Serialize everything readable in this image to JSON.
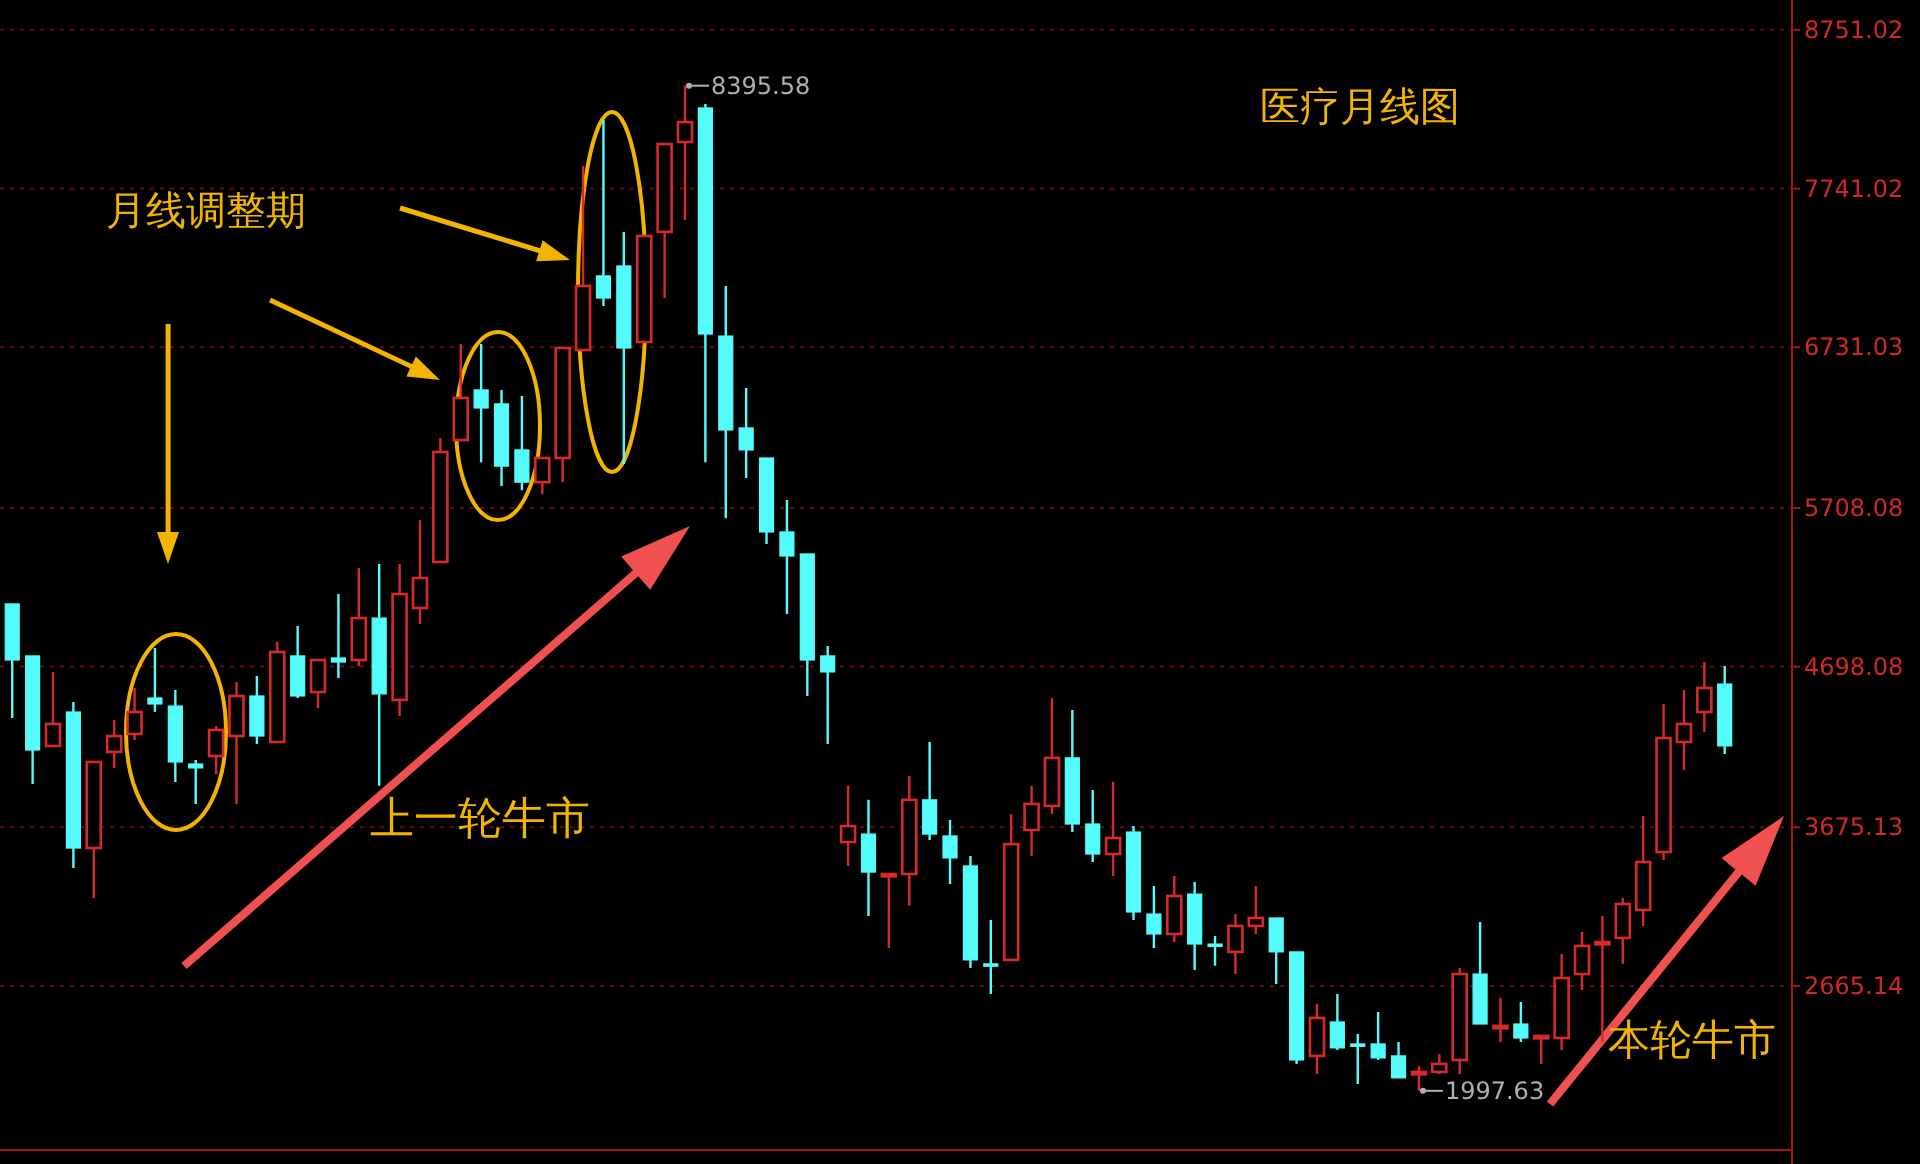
{
  "chart_data": {
    "type": "candlestick",
    "title": "医疗月线图",
    "categories": [
      null,
      null,
      null,
      null,
      null,
      null,
      null,
      null,
      null,
      null,
      null,
      null,
      null,
      null,
      null,
      null,
      null,
      null,
      null,
      null,
      null,
      null,
      null,
      null,
      null,
      null,
      null,
      null,
      null,
      null,
      null,
      null,
      null,
      null,
      null,
      null,
      null,
      null,
      null,
      null,
      null,
      null,
      null,
      null,
      null,
      null,
      null,
      null,
      null,
      null,
      null,
      null,
      null,
      null,
      null,
      null,
      null,
      null,
      null,
      null,
      null,
      null,
      null,
      null,
      null,
      null,
      null,
      null,
      null,
      null,
      null,
      null,
      null,
      null,
      null,
      null,
      null,
      null,
      null,
      null,
      null,
      null,
      null,
      null,
      null
    ],
    "ohlc": [
      [
        5097,
        5097,
        4371,
        4740
      ],
      [
        4766,
        4766,
        3951,
        4167
      ],
      [
        4193,
        4664,
        4193,
        4333
      ],
      [
        4409,
        4473,
        3416,
        3543
      ],
      [
        3543,
        4091,
        3225,
        4091
      ],
      [
        4155,
        4358,
        4053,
        4256
      ],
      [
        4269,
        4562,
        4231,
        4409
      ],
      [
        4498,
        4816,
        4409,
        4460
      ],
      [
        4447,
        4549,
        3964,
        4091
      ],
      [
        4078,
        4104,
        3824,
        4053
      ],
      [
        4129,
        4320,
        4015,
        4295
      ],
      [
        4256,
        4600,
        3824,
        4511
      ],
      [
        4511,
        4638,
        4205,
        4256
      ],
      [
        4218,
        4855,
        4218,
        4791
      ],
      [
        4766,
        4957,
        4498,
        4511
      ],
      [
        4536,
        4740,
        4435,
        4740
      ],
      [
        4753,
        5160,
        4626,
        4727
      ],
      [
        4740,
        5326,
        4702,
        5007
      ],
      [
        5007,
        5351,
        3939,
        4524
      ],
      [
        4486,
        5351,
        4384,
        5160
      ],
      [
        5071,
        5631,
        4969,
        5262
      ],
      [
        5364,
        6153,
        5364,
        6064
      ],
      [
        6140,
        6751,
        6140,
        6408
      ],
      [
        6459,
        6751,
        5999,
        6344
      ],
      [
        6370,
        6459,
        5847,
        5974
      ],
      [
        6077,
        6421,
        5821,
        5872
      ],
      [
        5872,
        6026,
        5796,
        6026
      ],
      [
        6026,
        6726,
        5872,
        6726
      ],
      [
        6713,
        7884,
        6713,
        7121
      ],
      [
        7185,
        8177,
        6993,
        7044
      ],
      [
        7248,
        7465,
        5987,
        6726
      ],
      [
        6764,
        7439,
        6764,
        7439
      ],
      [
        7465,
        8024,
        7044,
        8024
      ],
      [
        8037,
        8395.58,
        7541,
        8164
      ],
      [
        8254,
        8279,
        5999,
        6815
      ],
      [
        6802,
        7121,
        5643,
        6204
      ],
      [
        6217,
        6472,
        5898,
        6077
      ],
      [
        6026,
        6026,
        5478,
        5555
      ],
      [
        5555,
        5758,
        5033,
        5402
      ],
      [
        5415,
        5415,
        4511,
        4740
      ],
      [
        4766,
        4829,
        4205,
        4664
      ],
      [
        3581,
        3939,
        3429,
        3683
      ],
      [
        3632,
        3850,
        3110,
        3390
      ],
      [
        3365,
        3378,
        2907,
        3378
      ],
      [
        3378,
        4002,
        3175,
        3850
      ],
      [
        3850,
        4218,
        3594,
        3632
      ],
      [
        3620,
        3722,
        3314,
        3480
      ],
      [
        3429,
        3492,
        2780,
        2831
      ],
      [
        2806,
        3085,
        2614,
        2793
      ],
      [
        2831,
        3759,
        2831,
        3568
      ],
      [
        3658,
        3939,
        3492,
        3824
      ],
      [
        3811,
        4498,
        3759,
        4117
      ],
      [
        4117,
        4422,
        3645,
        3696
      ],
      [
        3696,
        3913,
        3454,
        3505
      ],
      [
        3505,
        3964,
        3365,
        3607
      ],
      [
        3645,
        3683,
        3085,
        3136
      ],
      [
        3123,
        3301,
        2907,
        2996
      ],
      [
        2996,
        3365,
        2945,
        3238
      ],
      [
        3250,
        3327,
        2767,
        2932
      ],
      [
        2932,
        2983,
        2793,
        2920
      ],
      [
        2882,
        3123,
        2742,
        3047
      ],
      [
        3047,
        3301,
        2996,
        3098
      ],
      [
        3098,
        3098,
        2678,
        2882
      ],
      [
        2882,
        2882,
        2169,
        2194
      ],
      [
        2220,
        2551,
        2105,
        2462
      ],
      [
        2436,
        2614,
        2258,
        2271
      ],
      [
        2296,
        2360,
        2041,
        2284
      ],
      [
        2296,
        2500,
        2194,
        2207
      ],
      [
        2220,
        2309,
        2080,
        2080
      ],
      [
        2105,
        2156,
        1997.63,
        2118
      ],
      [
        2118,
        2232,
        2105,
        2169
      ],
      [
        2194,
        2780,
        2105,
        2741
      ],
      [
        2741,
        3072,
        2423,
        2423
      ],
      [
        2398,
        2589,
        2309,
        2411
      ],
      [
        2423,
        2563,
        2309,
        2334
      ],
      [
        2334,
        2347,
        2169,
        2347
      ],
      [
        2334,
        2869,
        2258,
        2716
      ],
      [
        2741,
        3009,
        2640,
        2920
      ],
      [
        2932,
        3110,
        2309,
        2945
      ],
      [
        2971,
        3225,
        2806,
        3187
      ],
      [
        3149,
        3747,
        3047,
        3454
      ],
      [
        3518,
        4460,
        3467,
        4243
      ],
      [
        4218,
        4549,
        4040,
        4333
      ],
      [
        4409,
        4727,
        4282,
        4562
      ],
      [
        4587,
        4702,
        4142,
        4193
      ]
    ],
    "colors": [
      "#54fcfc",
      "#54fcfc",
      "#d62a2a",
      "#54fcfc",
      "#d62a2a",
      "#d62a2a",
      "#d62a2a",
      "#54fcfc",
      "#54fcfc",
      "#54fcfc",
      "#d62a2a",
      "#d62a2a",
      "#54fcfc",
      "#d62a2a",
      "#54fcfc",
      "#d62a2a",
      "#54fcfc",
      "#d62a2a",
      "#54fcfc",
      "#d62a2a",
      "#d62a2a",
      "#d62a2a",
      "#d62a2a",
      "#54fcfc",
      "#54fcfc",
      "#54fcfc",
      "#d62a2a",
      "#d62a2a",
      "#d62a2a",
      "#54fcfc",
      "#54fcfc",
      "#d62a2a",
      "#d62a2a",
      "#d62a2a",
      "#54fcfc",
      "#54fcfc",
      "#54fcfc",
      "#54fcfc",
      "#54fcfc",
      "#54fcfc",
      "#54fcfc",
      "#d62a2a",
      "#54fcfc",
      "#d62a2a",
      "#d62a2a",
      "#54fcfc",
      "#54fcfc",
      "#54fcfc",
      "#54fcfc",
      "#d62a2a",
      "#d62a2a",
      "#d62a2a",
      "#54fcfc",
      "#54fcfc",
      "#d62a2a",
      "#54fcfc",
      "#54fcfc",
      "#d62a2a",
      "#54fcfc",
      "#54fcfc",
      "#d62a2a",
      "#d62a2a",
      "#54fcfc",
      "#54fcfc",
      "#d62a2a",
      "#54fcfc",
      "#54fcfc",
      "#54fcfc",
      "#54fcfc",
      "#d62a2a",
      "#d62a2a",
      "#d62a2a",
      "#54fcfc",
      "#d62a2a",
      "#54fcfc",
      "#d62a2a",
      "#d62a2a",
      "#d62a2a",
      "#d62a2a",
      "#d62a2a",
      "#d62a2a",
      "#d62a2a",
      "#d62a2a",
      "#d62a2a",
      "#54fcfc"
    ],
    "ylim": [
      1621,
      8941
    ],
    "yticks": [
      2665.14,
      3675.13,
      4698.08,
      5708.08,
      6731.03,
      7741.02,
      8751.02
    ],
    "grid": "y",
    "tick_labels": "y",
    "annotations": [
      "月线调整期",
      "上一轮牛市",
      "本轮牛市",
      "8395.58",
      "1997.63"
    ]
  }
}
